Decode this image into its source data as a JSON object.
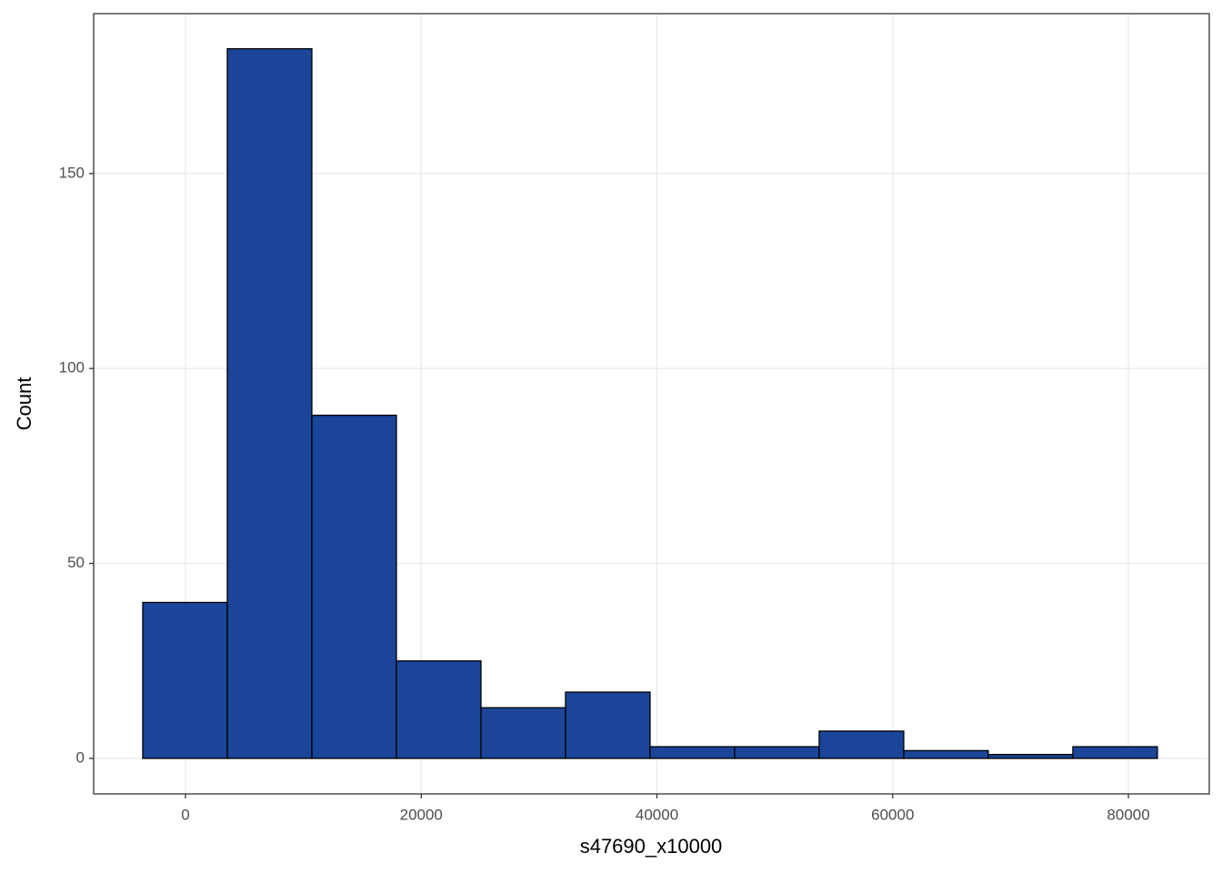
{
  "chart_data": {
    "type": "histogram",
    "x_label": "s47690_x10000",
    "y_label": "Count",
    "bins": [
      -3626,
      3548,
      10722,
      17896,
      25070,
      32244,
      39418,
      46592,
      53766,
      60940,
      68114,
      75288,
      82462
    ],
    "values": [
      40,
      182,
      88,
      25,
      13,
      17,
      3,
      3,
      7,
      2,
      1,
      3
    ],
    "color": "#1a4599",
    "edge_color": "#000000",
    "xlim": [
      -7791,
      86862
    ],
    "ylim": [
      -9.1,
      191
    ],
    "xticks": [
      0,
      20000,
      40000,
      60000,
      80000
    ],
    "yticks": [
      0,
      50,
      100,
      150
    ],
    "grid": true
  }
}
